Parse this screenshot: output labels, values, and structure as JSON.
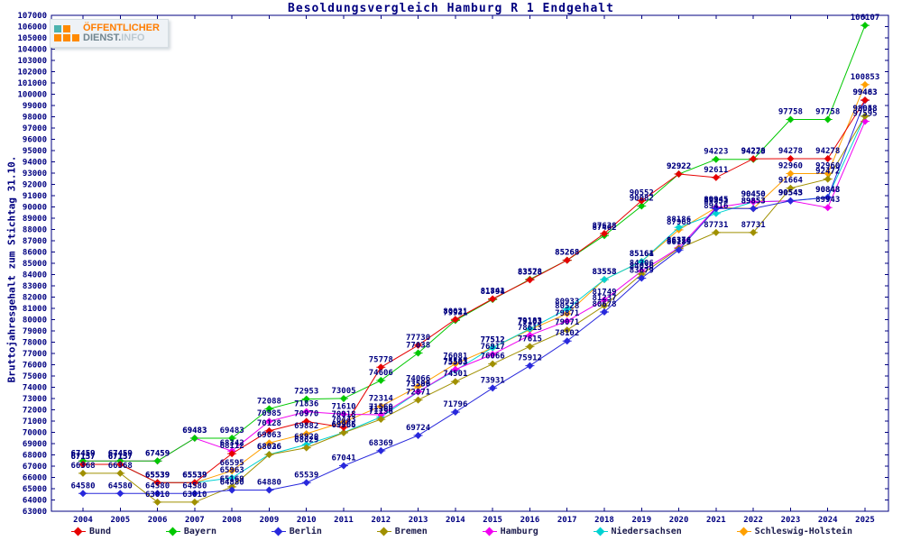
{
  "title": "Besoldungsvergleich Hamburg R 1 Endgehalt",
  "logo": {
    "line1": "ÖFFENTLICHER",
    "line2_strong": "DIENST.",
    "line2_light": "INFO"
  },
  "chart_data": {
    "type": "line",
    "title": "Besoldungsvergleich Hamburg R 1 Endgehalt",
    "ylabel": "Bruttojahresgehalt zum Stichtag 31.10.",
    "xlabel": "",
    "ylim": [
      63000,
      107000
    ],
    "ytick_step": 1000,
    "grid": false,
    "legend_position": "bottom",
    "point_labels": true,
    "label_color": "#000080",
    "axis_color": "#000080",
    "x": [
      2004,
      2005,
      2006,
      2007,
      2008,
      2009,
      2010,
      2011,
      2012,
      2013,
      2014,
      2015,
      2016,
      2017,
      2018,
      2019,
      2020,
      2021,
      2022,
      2023,
      2024,
      2025
    ],
    "series": [
      {
        "name": "Bund",
        "color": "#e60000",
        "values": [
          67157,
          67157,
          65539,
          65539,
          68112,
          70128,
          70970,
          70443,
          75778,
          77730,
          80021,
          81841,
          83528,
          85268,
          87638,
          90552,
          92922,
          92611,
          94270,
          94278,
          94278,
          99483
        ]
      },
      {
        "name": "Bayern",
        "color": "#00c800",
        "values": [
          67459,
          67459,
          67459,
          69483,
          69483,
          72088,
          72953,
          73005,
          74606,
          77038,
          79931,
          81794,
          83578,
          85268,
          87462,
          90082,
          92922,
          94223,
          94223,
          97758,
          97758,
          106107
        ]
      },
      {
        "name": "Berlin",
        "color": "#2828dc",
        "values": [
          64580,
          64580,
          64580,
          64580,
          64880,
          64880,
          65539,
          67041,
          68369,
          69724,
          71796,
          73931,
          75912,
          78102,
          80678,
          83679,
          86185,
          89853,
          89853,
          90543,
          90843,
          99463
        ]
      },
      {
        "name": "Bremen",
        "color": "#a09000",
        "values": [
          66368,
          66368,
          63810,
          63810,
          65169,
          68026,
          68629,
          69966,
          71156,
          72871,
          74501,
          76066,
          77615,
          79071,
          81237,
          84036,
          86316,
          87731,
          87731,
          91664,
          92472,
          98048
        ]
      },
      {
        "name": "Hamburg",
        "color": "#f000f0",
        "values": [
          67459,
          67459,
          67459,
          69483,
          68342,
          70985,
          71836,
          71610,
          71560,
          73599,
          75583,
          76917,
          78613,
          79871,
          81749,
          84306,
          86376,
          89945,
          90450,
          90543,
          89943,
          97595
        ]
      },
      {
        "name": "Niedersachsen",
        "color": "#00d2d2",
        "values": [
          67157,
          67157,
          65539,
          65539,
          65963,
          68036,
          68920,
          69985,
          71360,
          73586,
          75503,
          77512,
          79183,
          80933,
          83558,
          85161,
          88186,
          89416,
          90450,
          90545,
          90848,
          98058
        ]
      },
      {
        "name": "Schleswig-Holstein",
        "color": "#ffa000",
        "values": [
          67157,
          67157,
          65539,
          65539,
          66595,
          69063,
          69882,
          70918,
          72314,
          74066,
          76081,
          77512,
          79103,
          80528,
          83553,
          85164,
          87968,
          89945,
          89853,
          92960,
          92960,
          100853
        ]
      }
    ],
    "draw_order": [
      "Schleswig-Holstein",
      "Niedersachsen",
      "Hamburg",
      "Bremen",
      "Berlin",
      "Bayern",
      "Bund"
    ]
  }
}
